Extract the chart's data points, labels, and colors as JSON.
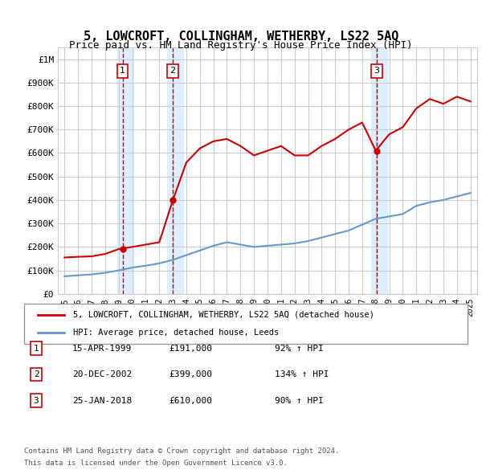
{
  "title": "5, LOWCROFT, COLLINGHAM, WETHERBY, LS22 5AQ",
  "subtitle": "Price paid vs. HM Land Registry's House Price Index (HPI)",
  "ylabel_ticks": [
    "£0",
    "£100K",
    "£200K",
    "£300K",
    "£400K",
    "£500K",
    "£600K",
    "£700K",
    "£800K",
    "£900K",
    "£1M"
  ],
  "ytick_values": [
    0,
    100000,
    200000,
    300000,
    400000,
    500000,
    600000,
    700000,
    800000,
    900000,
    1000000
  ],
  "xlim": [
    1994.5,
    2025.5
  ],
  "ylim": [
    0,
    1050000
  ],
  "sale_dates_num": [
    1999.29,
    2002.97,
    2018.07
  ],
  "sale_prices": [
    191000,
    399000,
    610000
  ],
  "sale_labels": [
    "1",
    "2",
    "3"
  ],
  "legend_red": "5, LOWCROFT, COLLINGHAM, WETHERBY, LS22 5AQ (detached house)",
  "legend_blue": "HPI: Average price, detached house, Leeds",
  "table_rows": [
    [
      "1",
      "15-APR-1999",
      "£191,000",
      "92% ↑ HPI"
    ],
    [
      "2",
      "20-DEC-2002",
      "£399,000",
      "134% ↑ HPI"
    ],
    [
      "3",
      "25-JAN-2018",
      "£610,000",
      "90% ↑ HPI"
    ]
  ],
  "footnote1": "Contains HM Land Registry data © Crown copyright and database right 2024.",
  "footnote2": "This data is licensed under the Open Government Licence v3.0.",
  "red_color": "#cc0000",
  "blue_color": "#6699cc",
  "shade_color": "#ddeeff",
  "grid_color": "#cccccc",
  "hpi_base_years": [
    1995,
    1996,
    1997,
    1998,
    1999,
    2000,
    2001,
    2002,
    2003,
    2004,
    2005,
    2006,
    2007,
    2008,
    2009,
    2010,
    2011,
    2012,
    2013,
    2014,
    2015,
    2016,
    2017,
    2018,
    2019,
    2020,
    2021,
    2022,
    2023,
    2024,
    2025
  ],
  "hpi_values": [
    75000,
    79000,
    83000,
    90000,
    100000,
    112000,
    120000,
    130000,
    145000,
    165000,
    185000,
    205000,
    220000,
    210000,
    200000,
    205000,
    210000,
    215000,
    225000,
    240000,
    255000,
    270000,
    295000,
    320000,
    330000,
    340000,
    375000,
    390000,
    400000,
    415000,
    430000
  ],
  "red_line_years": [
    1995,
    1996,
    1997,
    1998,
    1999,
    2000,
    2001,
    2002,
    2003,
    2004,
    2005,
    2006,
    2007,
    2008,
    2009,
    2010,
    2011,
    2012,
    2013,
    2014,
    2015,
    2016,
    2017,
    2018,
    2019,
    2020,
    2021,
    2022,
    2023,
    2024,
    2025
  ],
  "red_line_values": [
    155000,
    158000,
    160000,
    170000,
    191000,
    200000,
    210000,
    220000,
    399000,
    560000,
    620000,
    650000,
    660000,
    630000,
    590000,
    610000,
    630000,
    590000,
    590000,
    630000,
    660000,
    700000,
    730000,
    610000,
    680000,
    710000,
    790000,
    830000,
    810000,
    840000,
    820000
  ]
}
